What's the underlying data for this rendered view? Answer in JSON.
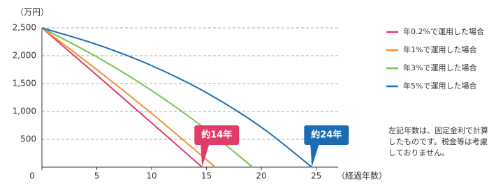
{
  "chart_data": {
    "type": "line",
    "y_label": "（万円）",
    "x_label": "（経過年数）",
    "xlim": [
      0,
      27
    ],
    "ylim": [
      0,
      2500
    ],
    "xticks": [
      0,
      5,
      10,
      15,
      20,
      25
    ],
    "yticks": [
      500,
      {
        "value": 1000,
        "label": "1,000"
      },
      {
        "value": 1500,
        "label": "1,500"
      },
      {
        "value": 2000,
        "label": "2,000"
      },
      {
        "value": 2500,
        "label": "2,500"
      }
    ],
    "grid": true,
    "legend": "right",
    "series": [
      {
        "name": "年0.2%で運用した場合",
        "color": "#e03c6a",
        "x": [
          0,
          5,
          10,
          14.6
        ],
        "values": [
          2500,
          1651,
          794,
          0
        ]
      },
      {
        "name": "年1%で運用した場合",
        "color": "#f0922e",
        "x": [
          0,
          5,
          10,
          15.8
        ],
        "values": [
          2500,
          1751,
          964,
          0
        ]
      },
      {
        "name": "年3%で運用した場合",
        "color": "#7cc152",
        "x": [
          0,
          5,
          10,
          15,
          19.2
        ],
        "values": [
          2500,
          1979,
          1375,
          674,
          0
        ]
      },
      {
        "name": "年5%で運用した場合",
        "color": "#1a6cb3",
        "x": [
          0,
          5,
          10,
          15,
          20,
          24.6
        ],
        "values": [
          2500,
          2202,
          1822,
          1336,
          717,
          0
        ]
      }
    ],
    "annotations": [
      {
        "text": "約14年",
        "x": 14.6,
        "color": "#e03c6a"
      },
      {
        "text": "約24年",
        "x": 24.6,
        "color": "#1a6cb3"
      }
    ],
    "note": [
      "左記年数は、固定金利で計算",
      "したものです。税金等は考慮",
      "しておりません。"
    ]
  }
}
